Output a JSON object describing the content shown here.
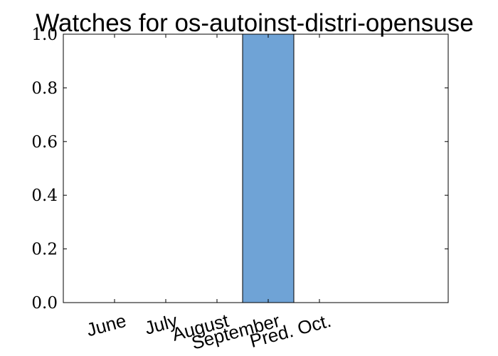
{
  "chart_data": {
    "type": "bar",
    "title": "Watches for os-autoinst-distri-opensuse",
    "xlabel": "",
    "ylabel": "",
    "categories": [
      "June",
      "July",
      "August",
      "September",
      "Pred. Oct."
    ],
    "values": [
      0,
      0,
      0,
      1.0,
      0
    ],
    "ylim": [
      0.0,
      1.0
    ],
    "yticks": [
      "0.0",
      "0.2",
      "0.4",
      "0.6",
      "0.8",
      "1.0"
    ],
    "grid": false,
    "bar_color": "#6fa3d6"
  }
}
